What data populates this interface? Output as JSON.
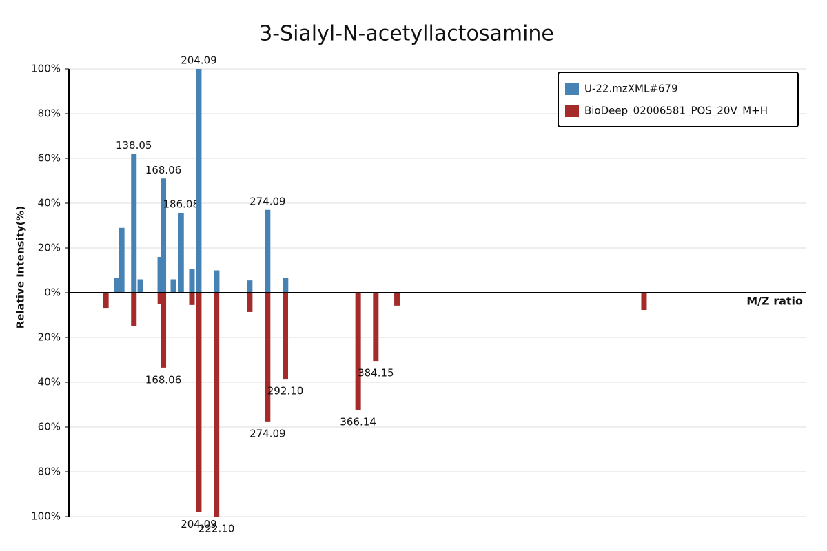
{
  "chart_data": {
    "type": "mirror_spectrum",
    "title": "3-Sialyl-N-acetyllactosamine",
    "y_label": "Relative Intensity(%)",
    "x_label": "M/Z ratio",
    "xlim": [
      72,
      822
    ],
    "ylim": [
      -100,
      100
    ],
    "yticks": [
      {
        "value": 100,
        "label": "100%"
      },
      {
        "value": 80,
        "label": "80%"
      },
      {
        "value": 60,
        "label": "60%"
      },
      {
        "value": 40,
        "label": "40%"
      },
      {
        "value": 20,
        "label": "20%"
      },
      {
        "value": 0,
        "label": "0%"
      },
      {
        "value": -20,
        "label": "20%"
      },
      {
        "value": -40,
        "label": "40%"
      },
      {
        "value": -60,
        "label": "60%"
      },
      {
        "value": -80,
        "label": "80%"
      },
      {
        "value": -100,
        "label": "100%"
      }
    ],
    "grid": true,
    "legend": "top-right",
    "series": [
      {
        "name": "U-22.mzXML#679",
        "color": "#4682b4",
        "x": [
          120.8,
          125.7,
          138.05,
          144.6,
          164.9,
          168.06,
          178.2,
          186.08,
          197.1,
          204.09,
          222.3,
          255.9,
          274.09,
          292.3
        ],
        "values": [
          6.5,
          29,
          62,
          6,
          16,
          51,
          6,
          35.7,
          10.5,
          100,
          10,
          5.5,
          37,
          6.5
        ],
        "labels": [
          null,
          null,
          "138.05",
          null,
          null,
          "168.06",
          null,
          "186.08",
          null,
          "204.09",
          null,
          null,
          "274.09",
          null
        ]
      },
      {
        "name": "BioDeep_02006581_POS_20V_M+H",
        "color": "#a52a2a",
        "x": [
          109.6,
          138.05,
          165,
          168.06,
          197.1,
          204.09,
          222.1,
          255.9,
          274.09,
          292.1,
          366.14,
          384.15,
          405.7,
          656.9
        ],
        "values": [
          -6.8,
          -15,
          -5,
          -33.5,
          -5.5,
          -98,
          -100,
          -8.6,
          -57.5,
          -38.5,
          -52.3,
          -30.5,
          -5.8,
          -7.7
        ],
        "labels": [
          null,
          null,
          null,
          "168.06",
          null,
          "204.09",
          "222.10",
          null,
          "274.09",
          "292.10",
          "366.14",
          "384.15",
          null,
          null
        ]
      }
    ]
  }
}
